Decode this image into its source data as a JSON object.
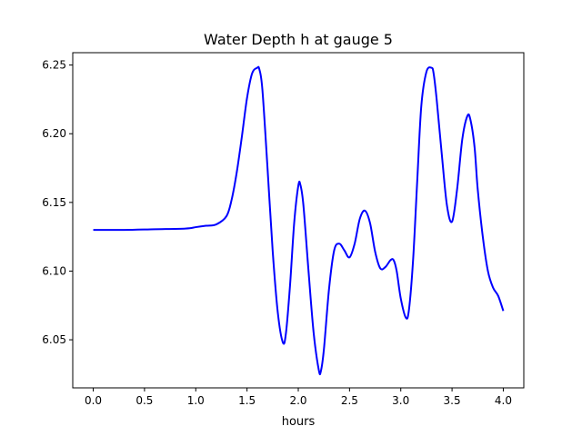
{
  "chart_data": {
    "type": "line",
    "title": "Water Depth h at gauge 5",
    "xlabel": "hours",
    "ylabel": "",
    "xlim": [
      -0.2,
      4.2
    ],
    "ylim": [
      6.015,
      6.259
    ],
    "xticks": [
      0.0,
      0.5,
      1.0,
      1.5,
      2.0,
      2.5,
      3.0,
      3.5,
      4.0
    ],
    "xtick_labels": [
      "0.0",
      "0.5",
      "1.0",
      "1.5",
      "2.0",
      "2.5",
      "3.0",
      "3.5",
      "4.0"
    ],
    "yticks": [
      6.05,
      6.1,
      6.15,
      6.2,
      6.25
    ],
    "ytick_labels": [
      "6.05",
      "6.10",
      "6.15",
      "6.20",
      "6.25"
    ],
    "grid": false,
    "series": [
      {
        "color": "#0000ff",
        "x": [
          0.0,
          0.3,
          0.6,
          0.9,
          1.0,
          1.1,
          1.2,
          1.3,
          1.35,
          1.4,
          1.45,
          1.5,
          1.55,
          1.6,
          1.62,
          1.65,
          1.7,
          1.75,
          1.8,
          1.85,
          1.88,
          1.92,
          1.96,
          2.0,
          2.02,
          2.05,
          2.1,
          2.15,
          2.2,
          2.22,
          2.25,
          2.3,
          2.35,
          2.4,
          2.45,
          2.5,
          2.55,
          2.6,
          2.65,
          2.7,
          2.75,
          2.8,
          2.85,
          2.9,
          2.93,
          2.96,
          3.0,
          3.05,
          3.08,
          3.12,
          3.16,
          3.2,
          3.25,
          3.3,
          3.32,
          3.35,
          3.4,
          3.45,
          3.5,
          3.55,
          3.6,
          3.65,
          3.68,
          3.72,
          3.75,
          3.8,
          3.85,
          3.9,
          3.95,
          4.0
        ],
        "y": [
          6.13,
          6.13,
          6.1305,
          6.131,
          6.132,
          6.133,
          6.134,
          6.14,
          6.152,
          6.172,
          6.198,
          6.226,
          6.244,
          6.248,
          6.247,
          6.232,
          6.175,
          6.115,
          6.07,
          6.048,
          6.055,
          6.09,
          6.135,
          6.162,
          6.163,
          6.148,
          6.1,
          6.055,
          6.028,
          6.027,
          6.043,
          6.087,
          6.115,
          6.12,
          6.115,
          6.11,
          6.12,
          6.138,
          6.144,
          6.135,
          6.114,
          6.102,
          6.103,
          6.108,
          6.108,
          6.1,
          6.08,
          6.066,
          6.072,
          6.108,
          6.165,
          6.22,
          6.245,
          6.248,
          6.244,
          6.225,
          6.185,
          6.148,
          6.136,
          6.16,
          6.196,
          6.213,
          6.21,
          6.19,
          6.16,
          6.125,
          6.1,
          6.088,
          6.082,
          6.071
        ]
      }
    ]
  }
}
